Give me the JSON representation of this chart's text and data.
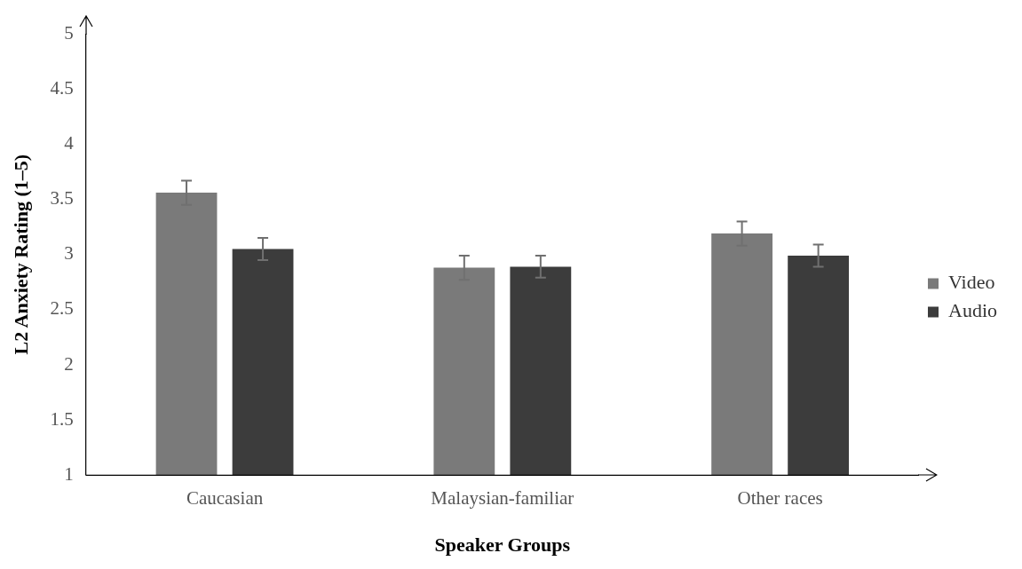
{
  "chart_data": {
    "type": "bar",
    "xlabel": "Speaker Groups",
    "ylabel": "L2 Anxiety Rating (1–5)",
    "categories": [
      "Caucasian",
      "Malaysian-familiar",
      "Other races"
    ],
    "series": [
      {
        "name": "Video",
        "color": "#7a7a7a",
        "values": [
          3.56,
          2.88,
          3.19
        ],
        "errors": [
          0.11,
          0.11,
          0.11
        ]
      },
      {
        "name": "Audio",
        "color": "#3c3c3c",
        "values": [
          3.05,
          2.89,
          2.99
        ],
        "errors": [
          0.1,
          0.1,
          0.1
        ]
      }
    ],
    "ylim": [
      1,
      5
    ],
    "yticks": [
      1,
      1.5,
      2,
      2.5,
      3,
      3.5,
      4,
      4.5,
      5
    ],
    "grid": false,
    "legend": "right"
  }
}
